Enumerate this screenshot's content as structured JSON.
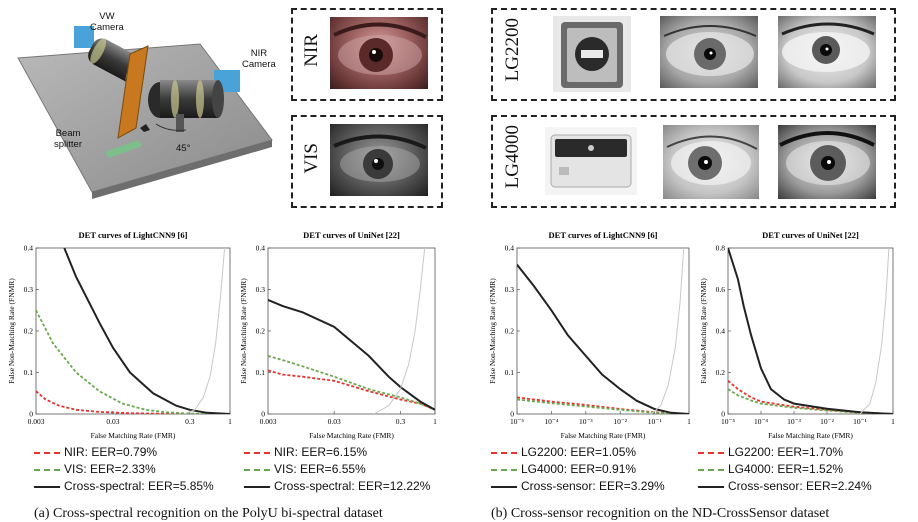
{
  "setup": {
    "vw_camera": "VW\nCamera",
    "nir_camera": "NIR\nCamera",
    "beam_splitter": "Beam\nsplitter",
    "angle": "45°"
  },
  "panel_a_labels": {
    "nir": "NIR",
    "vis": "VIS"
  },
  "panel_b_labels": {
    "lg2200": "LG2200",
    "lg4000": "LG4000"
  },
  "captions": {
    "a": "(a) Cross-spectral recognition on the PolyU bi-spectral dataset",
    "b": "(b) Cross-sensor recognition on the ND-CrossSensor dataset"
  },
  "colors": {
    "red": "#e8322c",
    "green": "#6aa84f",
    "black": "#222222",
    "gray_curve": "#c8c8c8"
  },
  "chart_data": [
    {
      "type": "line",
      "title": "DET curves of LightCNN9 [6]",
      "xlabel": "False Matching Rate (FMR)",
      "ylabel": "False Non-Matching Rate (FNMR)",
      "x_scale": "log",
      "xlim": [
        0.003,
        1
      ],
      "ylim": [
        0,
        0.4
      ],
      "x_ticks": [
        "0.003",
        "0.03",
        "0.3",
        "1"
      ],
      "y_ticks": [
        "0",
        "0.1",
        "0.2",
        "0.3",
        "0.4"
      ],
      "series": [
        {
          "name": "NIR: EER=0.79%",
          "style": "dashed",
          "color": "#e8322c",
          "x": [
            0.003,
            0.004,
            0.006,
            0.01,
            0.02,
            0.05,
            0.1,
            0.3,
            1
          ],
          "y": [
            0.055,
            0.035,
            0.02,
            0.01,
            0.005,
            0.002,
            0.001,
            0,
            0
          ]
        },
        {
          "name": "VIS: EER=2.33%",
          "style": "dashed",
          "color": "#6aa84f",
          "x": [
            0.003,
            0.005,
            0.01,
            0.02,
            0.04,
            0.08,
            0.15,
            0.3,
            1
          ],
          "y": [
            0.25,
            0.17,
            0.1,
            0.055,
            0.025,
            0.01,
            0.004,
            0.001,
            0
          ]
        },
        {
          "name": "Cross-spectral: EER=5.85%",
          "style": "solid",
          "color": "#222222",
          "x": [
            0.007,
            0.01,
            0.02,
            0.03,
            0.05,
            0.1,
            0.2,
            0.3,
            0.5,
            1
          ],
          "y": [
            0.4,
            0.33,
            0.22,
            0.16,
            0.1,
            0.05,
            0.02,
            0.01,
            0.003,
            0
          ]
        },
        {
          "name": "",
          "style": "solid",
          "color": "#c8c8c8",
          "x": [
            0.25,
            0.35,
            0.45,
            0.55,
            0.65,
            0.75,
            0.85
          ],
          "y": [
            0,
            0.01,
            0.04,
            0.09,
            0.17,
            0.28,
            0.4
          ]
        }
      ]
    },
    {
      "type": "line",
      "title": "DET curves of UniNet [22]",
      "xlabel": "False Matching Rate (FMR)",
      "ylabel": "False Non-Matching Rate (FNMR)",
      "x_scale": "log",
      "xlim": [
        0.003,
        1
      ],
      "ylim": [
        0,
        0.4
      ],
      "x_ticks": [
        "0.003",
        "0.03",
        "0.3",
        "1"
      ],
      "y_ticks": [
        "0",
        "0.1",
        "0.2",
        "0.3",
        "0.4"
      ],
      "series": [
        {
          "name": "NIR: EER=6.15%",
          "style": "dashed",
          "color": "#e8322c",
          "x": [
            0.003,
            0.005,
            0.01,
            0.03,
            0.1,
            0.3,
            0.6,
            1
          ],
          "y": [
            0.105,
            0.095,
            0.09,
            0.08,
            0.055,
            0.035,
            0.025,
            0.01
          ]
        },
        {
          "name": "VIS: EER=6.55%",
          "style": "dashed",
          "color": "#6aa84f",
          "x": [
            0.003,
            0.005,
            0.01,
            0.03,
            0.1,
            0.3,
            0.6,
            1
          ],
          "y": [
            0.14,
            0.13,
            0.115,
            0.09,
            0.06,
            0.04,
            0.025,
            0.01
          ]
        },
        {
          "name": "Cross-spectral: EER=12.22%",
          "style": "solid",
          "color": "#222222",
          "x": [
            0.003,
            0.005,
            0.01,
            0.03,
            0.1,
            0.2,
            0.3,
            0.6,
            1
          ],
          "y": [
            0.275,
            0.26,
            0.245,
            0.21,
            0.14,
            0.09,
            0.065,
            0.03,
            0.01
          ]
        },
        {
          "name": "",
          "style": "solid",
          "color": "#c8c8c8",
          "x": [
            0.12,
            0.2,
            0.3,
            0.4,
            0.5,
            0.6,
            0.7
          ],
          "y": [
            0,
            0.02,
            0.06,
            0.12,
            0.2,
            0.3,
            0.4
          ]
        }
      ]
    },
    {
      "type": "line",
      "title": "DET curves of LightCNN9 [6]",
      "xlabel": "False Matching Rate (FMR)",
      "ylabel": "False Non-Matching Rate (FNMR)",
      "x_scale": "log",
      "xlim": [
        1e-05,
        1
      ],
      "ylim": [
        0,
        0.4
      ],
      "x_ticks": [
        "10⁻⁵",
        "10⁻⁴",
        "10⁻³",
        "10⁻²",
        "10⁻¹",
        "1"
      ],
      "y_ticks": [
        "0",
        "0.1",
        "0.2",
        "0.3",
        "0.4"
      ],
      "series": [
        {
          "name": "LG2200: EER=1.05%",
          "style": "dashed",
          "color": "#e8322c",
          "x": [
            1e-05,
            0.0001,
            0.001,
            0.01,
            0.1,
            1
          ],
          "y": [
            0.04,
            0.03,
            0.022,
            0.012,
            0.004,
            0
          ]
        },
        {
          "name": "LG4000: EER=0.91%",
          "style": "dashed",
          "color": "#6aa84f",
          "x": [
            1e-05,
            0.0001,
            0.001,
            0.01,
            0.1,
            1
          ],
          "y": [
            0.035,
            0.026,
            0.018,
            0.01,
            0.003,
            0
          ]
        },
        {
          "name": "Cross-sensor: EER=3.29%",
          "style": "solid",
          "color": "#222222",
          "x": [
            1e-05,
            3e-05,
            0.0001,
            0.0003,
            0.001,
            0.003,
            0.01,
            0.03,
            0.1,
            0.3,
            1
          ],
          "y": [
            0.36,
            0.31,
            0.25,
            0.19,
            0.14,
            0.095,
            0.06,
            0.032,
            0.012,
            0.003,
            0
          ]
        },
        {
          "name": "",
          "style": "solid",
          "color": "#c8c8c8",
          "x": [
            0.08,
            0.15,
            0.25,
            0.4,
            0.55,
            0.7
          ],
          "y": [
            0,
            0.02,
            0.07,
            0.16,
            0.27,
            0.4
          ]
        }
      ]
    },
    {
      "type": "line",
      "title": "DET curves of UniNet [22]",
      "xlabel": "False Matching Rate (FMR)",
      "ylabel": "False Non-Matching Rate (FNMR)",
      "x_scale": "log",
      "xlim": [
        1e-05,
        1
      ],
      "ylim": [
        0,
        0.8
      ],
      "x_ticks": [
        "10⁻⁵",
        "10⁻⁴",
        "10⁻³",
        "10⁻²",
        "10⁻¹",
        "1"
      ],
      "y_ticks": [
        "0",
        "0.2",
        "0.4",
        "0.6",
        "0.8"
      ],
      "series": [
        {
          "name": "LG2200: EER=1.70%",
          "style": "dashed",
          "color": "#e8322c",
          "x": [
            1e-05,
            2e-05,
            5e-05,
            0.0001,
            0.001,
            0.01,
            0.1,
            1
          ],
          "y": [
            0.16,
            0.12,
            0.08,
            0.06,
            0.035,
            0.02,
            0.008,
            0
          ]
        },
        {
          "name": "LG4000: EER=1.52%",
          "style": "dashed",
          "color": "#6aa84f",
          "x": [
            1e-05,
            2e-05,
            5e-05,
            0.0001,
            0.001,
            0.01,
            0.1,
            1
          ],
          "y": [
            0.12,
            0.09,
            0.065,
            0.05,
            0.03,
            0.017,
            0.006,
            0
          ]
        },
        {
          "name": "Cross-sensor: EER=2.24%",
          "style": "solid",
          "color": "#222222",
          "x": [
            1e-05,
            2e-05,
            3e-05,
            5e-05,
            0.0001,
            0.0002,
            0.0005,
            0.001,
            0.01,
            0.1,
            1
          ],
          "y": [
            0.8,
            0.65,
            0.52,
            0.38,
            0.22,
            0.12,
            0.07,
            0.05,
            0.025,
            0.008,
            0
          ]
        },
        {
          "name": "",
          "style": "solid",
          "color": "#c8c8c8",
          "x": [
            0.1,
            0.2,
            0.3,
            0.45,
            0.6,
            0.75
          ],
          "y": [
            0,
            0.05,
            0.15,
            0.33,
            0.55,
            0.8
          ]
        }
      ]
    }
  ]
}
